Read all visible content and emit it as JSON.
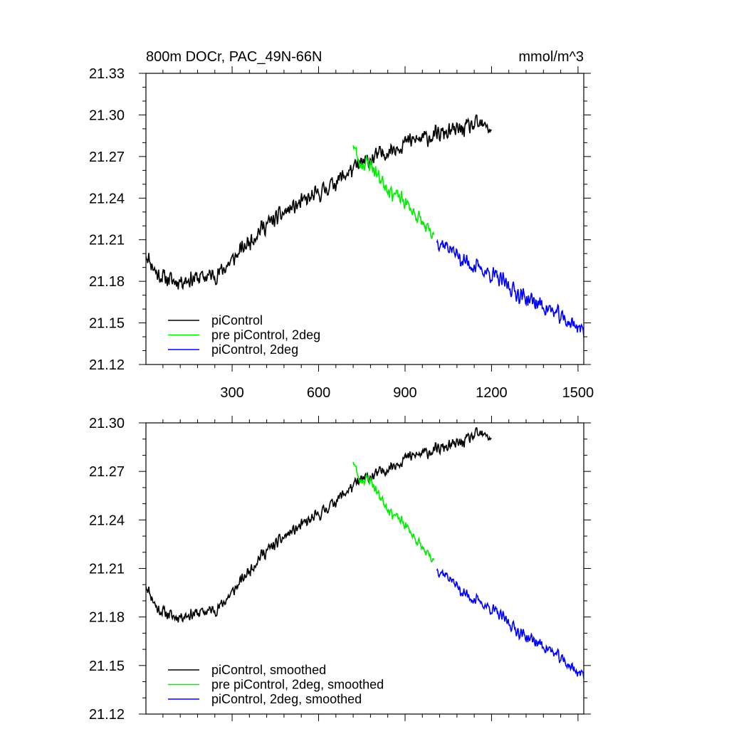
{
  "title_left": "800m DOCr, PAC_49N-66N",
  "title_right": "mmol/m^3",
  "chart_data": [
    {
      "type": "line",
      "panel": "top",
      "title": "800m DOCr, PAC_49N-66N",
      "units": "mmol/m^3",
      "xlim": [
        1,
        1520
      ],
      "ylim": [
        21.12,
        21.33
      ],
      "x_ticks": [
        300,
        600,
        900,
        1200,
        1500
      ],
      "x_tick_labels": [
        "300",
        "600",
        "900",
        "1200",
        "1500"
      ],
      "y_ticks": [
        21.12,
        21.15,
        21.18,
        21.21,
        21.24,
        21.27,
        21.3,
        21.33
      ],
      "y_tick_labels": [
        "21.12",
        "21.15",
        "21.18",
        "21.21",
        "21.24",
        "21.27",
        "21.30",
        "21.33"
      ],
      "legend_position": "bottom-left",
      "legend": [
        "piControl",
        "pre piControl, 2deg",
        "piControl, 2deg"
      ],
      "series": [
        {
          "name": "piControl",
          "color": "#000000",
          "x_start": 1,
          "x_end": 1200,
          "trend": [
            [
              1,
              21.2
            ],
            [
              40,
              21.185
            ],
            [
              100,
              21.18
            ],
            [
              200,
              21.183
            ],
            [
              250,
              21.185
            ],
            [
              300,
              21.195
            ],
            [
              400,
              21.218
            ],
            [
              500,
              21.232
            ],
            [
              600,
              21.243
            ],
            [
              700,
              21.258
            ],
            [
              750,
              21.265
            ],
            [
              800,
              21.27
            ],
            [
              900,
              21.28
            ],
            [
              1000,
              21.285
            ],
            [
              1100,
              21.29
            ],
            [
              1150,
              21.293
            ],
            [
              1200,
              21.29
            ]
          ],
          "noise": 0.0075,
          "seed": 11
        },
        {
          "name": "pre piControl, 2deg",
          "color": "#00ee00",
          "x_start": 720,
          "x_end": 1000,
          "trend": [
            [
              720,
              21.28
            ],
            [
              740,
              21.265
            ],
            [
              780,
              21.265
            ],
            [
              800,
              21.258
            ],
            [
              850,
              21.245
            ],
            [
              900,
              21.237
            ],
            [
              950,
              21.225
            ],
            [
              1000,
              21.21
            ]
          ],
          "noise": 0.007,
          "seed": 23
        },
        {
          "name": "piControl, 2deg",
          "color": "#0000ff",
          "x_start": 1010,
          "x_end": 1520,
          "trend": [
            [
              1010,
              21.21
            ],
            [
              1050,
              21.205
            ],
            [
              1100,
              21.195
            ],
            [
              1200,
              21.185
            ],
            [
              1250,
              21.178
            ],
            [
              1300,
              21.17
            ],
            [
              1400,
              21.16
            ],
            [
              1470,
              21.15
            ],
            [
              1500,
              21.148
            ],
            [
              1520,
              21.143
            ]
          ],
          "noise": 0.0075,
          "seed": 37
        }
      ]
    },
    {
      "type": "line",
      "panel": "bottom",
      "xlim": [
        1,
        1520
      ],
      "ylim": [
        21.12,
        21.3
      ],
      "y_ticks": [
        21.12,
        21.15,
        21.18,
        21.21,
        21.24,
        21.27,
        21.3
      ],
      "y_tick_labels": [
        "21.12",
        "21.15",
        "21.18",
        "21.21",
        "21.24",
        "21.27",
        "21.30"
      ],
      "legend_position": "bottom-left",
      "legend": [
        "piControl, smoothed",
        "pre piControl, 2deg, smoothed",
        "piControl, 2deg, smoothed"
      ],
      "series": [
        {
          "name": "piControl, smoothed",
          "color": "#000000",
          "x_start": 1,
          "x_end": 1200,
          "trend": [
            [
              1,
              21.2
            ],
            [
              40,
              21.185
            ],
            [
              100,
              21.18
            ],
            [
              200,
              21.183
            ],
            [
              250,
              21.185
            ],
            [
              300,
              21.195
            ],
            [
              400,
              21.218
            ],
            [
              500,
              21.232
            ],
            [
              600,
              21.243
            ],
            [
              700,
              21.258
            ],
            [
              750,
              21.265
            ],
            [
              800,
              21.268
            ],
            [
              900,
              21.278
            ],
            [
              1000,
              21.283
            ],
            [
              1100,
              21.288
            ],
            [
              1150,
              21.293
            ],
            [
              1200,
              21.291
            ]
          ],
          "noise": 0.0045,
          "seed": 11
        },
        {
          "name": "pre piControl, 2deg, smoothed",
          "color": "#00ee00",
          "x_start": 720,
          "x_end": 1000,
          "trend": [
            [
              720,
              21.277
            ],
            [
              740,
              21.265
            ],
            [
              780,
              21.265
            ],
            [
              800,
              21.258
            ],
            [
              850,
              21.245
            ],
            [
              900,
              21.237
            ],
            [
              950,
              21.225
            ],
            [
              1000,
              21.213
            ]
          ],
          "noise": 0.004,
          "seed": 23
        },
        {
          "name": "piControl, 2deg, smoothed",
          "color": "#0000ff",
          "x_start": 1010,
          "x_end": 1520,
          "trend": [
            [
              1010,
              21.21
            ],
            [
              1050,
              21.205
            ],
            [
              1100,
              21.195
            ],
            [
              1200,
              21.185
            ],
            [
              1250,
              21.178
            ],
            [
              1300,
              21.17
            ],
            [
              1400,
              21.16
            ],
            [
              1470,
              21.15
            ],
            [
              1500,
              21.146
            ],
            [
              1520,
              21.144
            ]
          ],
          "noise": 0.0045,
          "seed": 37
        }
      ]
    }
  ]
}
